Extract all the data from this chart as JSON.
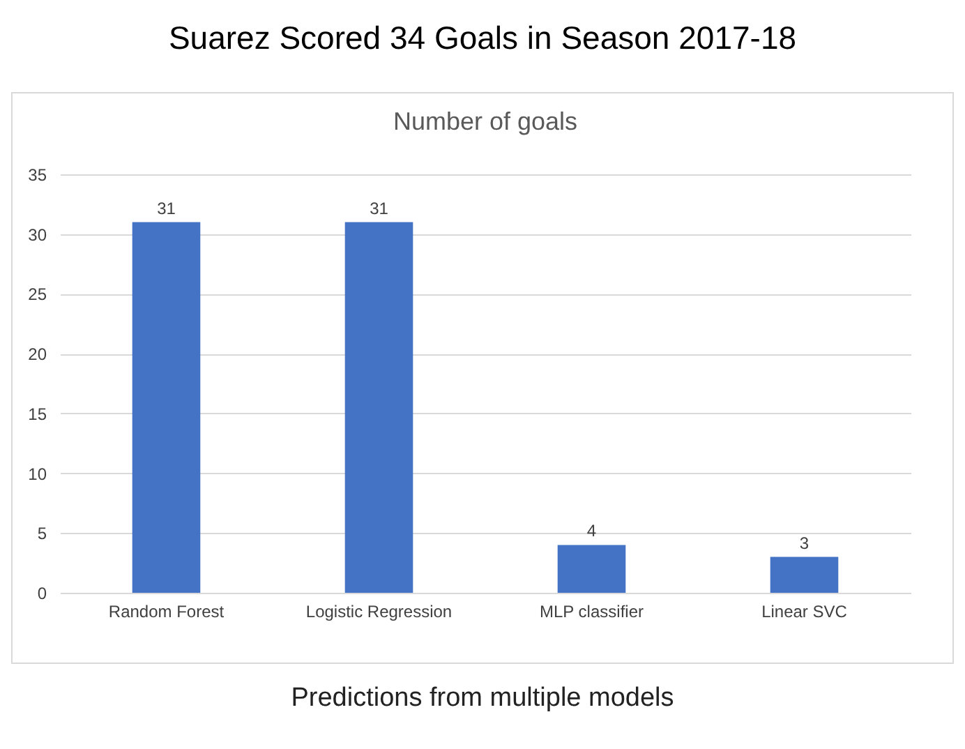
{
  "chart_data": {
    "type": "bar",
    "title": "Suarez Scored 34 Goals in Season 2017-18",
    "subtitle": "Number of goals",
    "annotations": [
      "Predictions from multiple models"
    ],
    "categories": [
      "Random Forest",
      "Logistic Regression",
      "MLP classifier",
      "Linear SVC"
    ],
    "values": [
      31,
      31,
      4,
      3
    ],
    "color": "#4472c4",
    "ylim": [
      0,
      35
    ],
    "yticks": [
      0,
      5,
      10,
      15,
      20,
      25,
      30,
      35
    ],
    "grid": "y",
    "data_labels": true
  }
}
